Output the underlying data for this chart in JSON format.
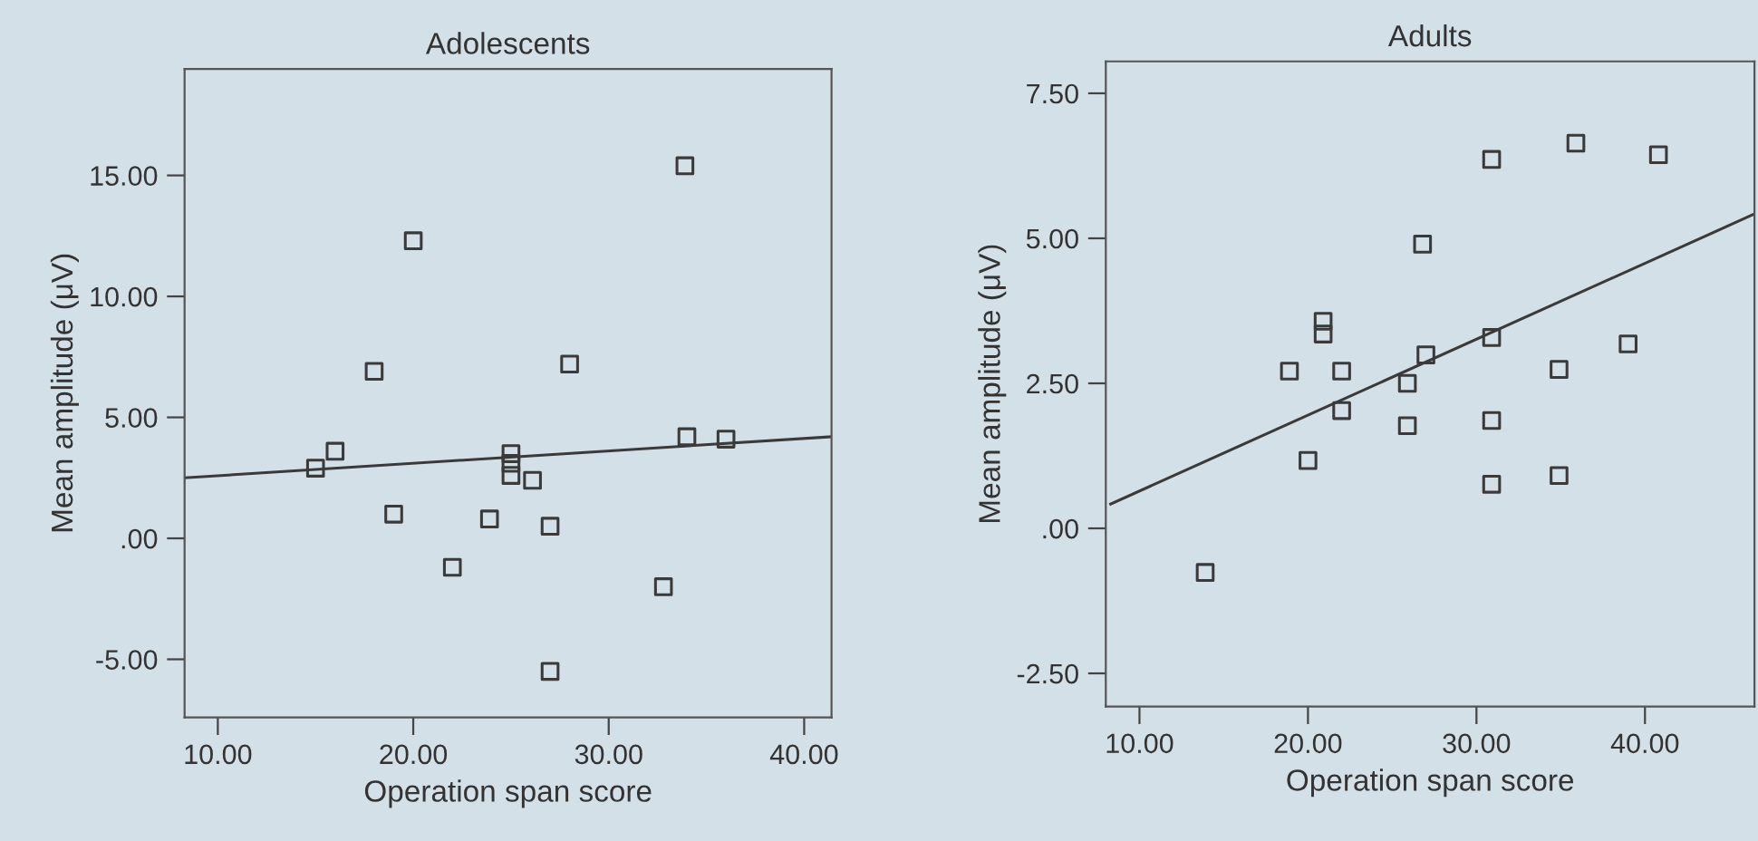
{
  "chart_data": [
    {
      "type": "scatter",
      "title": "Adolescents",
      "xlabel": "Operation span score",
      "ylabel": "Mean amplitude (μV)",
      "marker": "square",
      "grid": false,
      "xlim": [
        8.3,
        41.4
      ],
      "ylim": [
        -7.4,
        19.4
      ],
      "xticks": [
        {
          "value": 10,
          "label": "10.00"
        },
        {
          "value": 20,
          "label": "20.00"
        },
        {
          "value": 30,
          "label": "30.00"
        },
        {
          "value": 40,
          "label": "40.00"
        }
      ],
      "yticks": [
        {
          "value": -5,
          "label": "-5.00"
        },
        {
          "value": 0,
          "label": ".00"
        },
        {
          "value": 5,
          "label": "5.00"
        },
        {
          "value": 10,
          "label": "10.00"
        },
        {
          "value": 15,
          "label": "15.00"
        }
      ],
      "series": [
        {
          "color": "#3a3a3a",
          "x": [
            33.9,
            20.0,
            18.0,
            28.0,
            16.0,
            15.0,
            25.0,
            25.0,
            25.0,
            26.1,
            34.0,
            36.0,
            19.0,
            23.9,
            27.0,
            22.0,
            32.8,
            27.0
          ],
          "values": [
            15.4,
            12.3,
            6.9,
            7.2,
            3.6,
            2.9,
            3.5,
            3.1,
            2.6,
            2.4,
            4.2,
            4.1,
            1.0,
            0.8,
            0.5,
            -1.2,
            -2.0,
            -5.5
          ]
        },
        {
          "type": "line",
          "color": "#3a3a3a",
          "marker": "none",
          "x": [
            8.3,
            41.4
          ],
          "values": [
            2.5,
            4.2
          ]
        }
      ]
    },
    {
      "type": "scatter",
      "title": "Adults",
      "xlabel": "Operation span score",
      "ylabel": "Mean amplitude (μV)",
      "marker": "square",
      "grid": false,
      "xlim": [
        8.0,
        46.5
      ],
      "ylim": [
        -3.07,
        8.05
      ],
      "xticks": [
        {
          "value": 10,
          "label": "10.00"
        },
        {
          "value": 20,
          "label": "20.00"
        },
        {
          "value": 30,
          "label": "30.00"
        },
        {
          "value": 40,
          "label": "40.00"
        }
      ],
      "yticks": [
        {
          "value": -2.5,
          "label": "-2.50"
        },
        {
          "value": 0,
          "label": ".00"
        },
        {
          "value": 2.5,
          "label": "2.50"
        },
        {
          "value": 5,
          "label": "5.00"
        },
        {
          "value": 7.5,
          "label": "7.50"
        }
      ],
      "series": [
        {
          "color": "#3a3a3a",
          "x": [
            13.9,
            18.9,
            20.9,
            20.9,
            22.0,
            22.0,
            20.0,
            25.9,
            25.9,
            27.0,
            26.8,
            30.9,
            30.9,
            30.9,
            30.9,
            35.9,
            40.8,
            34.9,
            34.9,
            39.0
          ],
          "values": [
            -0.76,
            2.71,
            3.57,
            3.35,
            2.71,
            2.03,
            1.17,
            2.5,
            1.77,
            2.99,
            4.9,
            6.36,
            3.29,
            1.86,
            0.76,
            6.64,
            6.44,
            2.74,
            0.91,
            3.18
          ]
        },
        {
          "type": "line",
          "color": "#3a3a3a",
          "marker": "none",
          "x": [
            8.29,
            46.5
          ],
          "values": [
            0.42,
            5.42
          ]
        }
      ]
    }
  ]
}
